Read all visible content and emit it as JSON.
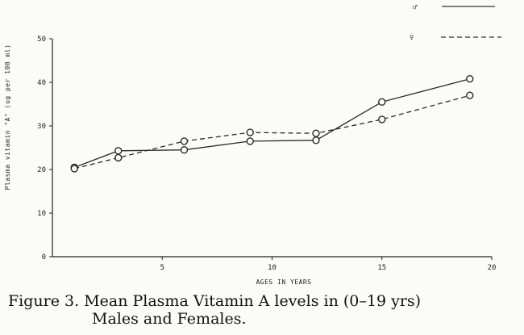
{
  "chart_data": {
    "type": "line",
    "title": "",
    "xlabel": "AGES IN YEARS",
    "ylabel": "Plasma vitamin \"A\" (ug per 100 ml)",
    "xlim": [
      0,
      20
    ],
    "ylim": [
      0,
      50
    ],
    "xticks": [
      5,
      10,
      15,
      20
    ],
    "xtick_labels": [
      "5",
      "10",
      "15",
      "20"
    ],
    "yticks": [
      0,
      10,
      20,
      30,
      40,
      50
    ],
    "ytick_labels": [
      "0",
      "10",
      "20",
      "30",
      "40",
      "50"
    ],
    "grid": false,
    "legend_position": "top-right",
    "series": [
      {
        "name": "♂",
        "style": "solid",
        "x": [
          1,
          3,
          6,
          9,
          12,
          15,
          19
        ],
        "y": [
          20.5,
          24.3,
          24.5,
          26.5,
          26.7,
          35.5,
          40.8
        ]
      },
      {
        "name": "♀",
        "style": "dashed",
        "x": [
          1,
          3,
          6,
          9,
          12,
          15,
          19
        ],
        "y": [
          20.2,
          22.7,
          26.5,
          28.5,
          28.3,
          31.5,
          37.0
        ]
      }
    ]
  },
  "caption": {
    "line1": "Figure 3. Mean Plasma Vitamin A levels in (0–19 yrs)",
    "line2": "Males and Females."
  }
}
